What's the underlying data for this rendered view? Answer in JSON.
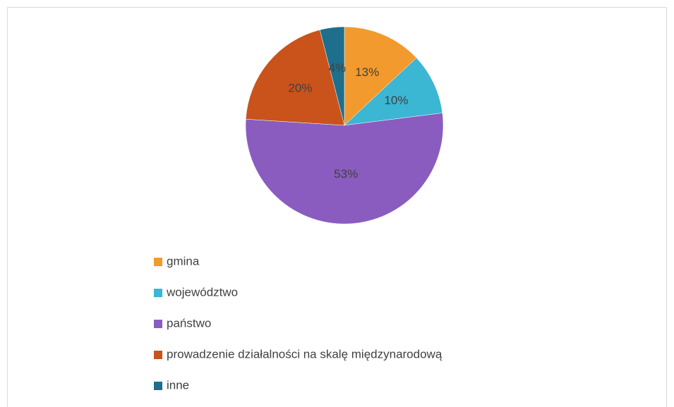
{
  "chart_data": {
    "type": "pie",
    "categories": [
      "gmina",
      "województwo",
      "państwo",
      "prowadzenie działalności na skalę międzynarodową",
      "inne"
    ],
    "values": [
      13,
      10,
      53,
      20,
      4
    ],
    "value_labels": [
      "13%",
      "10%",
      "53%",
      "20%",
      "4%"
    ],
    "colors": [
      "#f29a2e",
      "#3bb6d3",
      "#8a5cbf",
      "#c9531a",
      "#1d6f8c"
    ],
    "legend": "bottom"
  }
}
